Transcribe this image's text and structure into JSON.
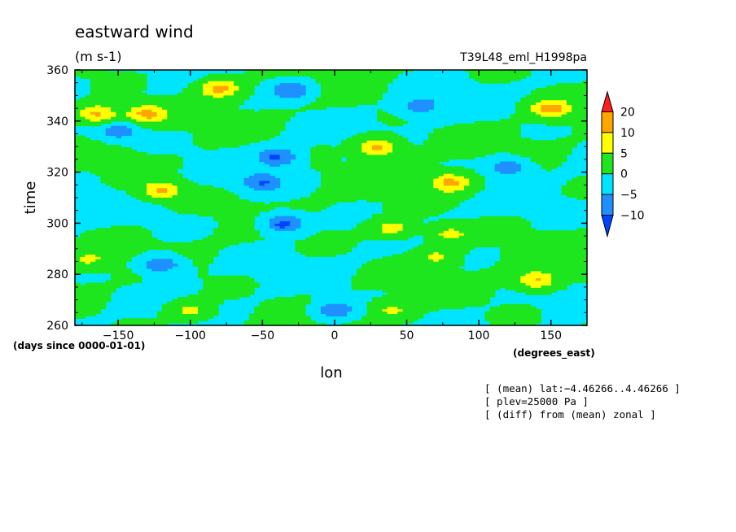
{
  "chart_data": {
    "type": "heatmap",
    "title": "eastward wind",
    "units": "(m s-1)",
    "run_label": "T39L48_eml_H1998pa",
    "xlabel": "lon",
    "x_units": "(degrees_east)",
    "ylabel": "time",
    "y_units": "(days since 0000-01-01)",
    "xlim": [
      -180,
      175
    ],
    "ylim": [
      260,
      360
    ],
    "x_ticks": [
      -150,
      -100,
      -50,
      0,
      50,
      100,
      150
    ],
    "x_tick_labels": [
      "−150",
      "−100",
      "−50",
      "0",
      "50",
      "100",
      "150"
    ],
    "y_ticks": [
      260,
      280,
      300,
      320,
      340,
      360
    ],
    "y_tick_labels": [
      "260",
      "280",
      "300",
      "320",
      "340",
      "360"
    ],
    "colorbar": {
      "levels": [
        -10,
        -5,
        0,
        5,
        10,
        20
      ],
      "level_labels": [
        "−10",
        "−5",
        "0",
        "5",
        "10",
        "20"
      ],
      "bins": [
        {
          "range": "< -10",
          "color": "#0044ff"
        },
        {
          "range": "-10 to -5",
          "color": "#1e90ff"
        },
        {
          "range": "-5 to 0",
          "color": "#00e5ff"
        },
        {
          "range": "0 to 5",
          "color": "#1ee61e"
        },
        {
          "range": "5 to 10",
          "color": "#ffff00"
        },
        {
          "range": "10 to 20",
          "color": "#ffa500"
        },
        {
          "range": "> 20",
          "color": "#ff1e1e"
        }
      ]
    },
    "notes": [
      "[ (mean) lat:−4.46266..4.46266 ]",
      "[ plev=25000 Pa ]",
      "[ (diff) from (mean) zonal ]"
    ],
    "features": [
      {
        "lon": -80,
        "time": 353,
        "value": 12
      },
      {
        "lon": -165,
        "time": 343,
        "value": 12
      },
      {
        "lon": -130,
        "time": 343,
        "value": 12
      },
      {
        "lon": 150,
        "time": 345,
        "value": 12
      },
      {
        "lon": 30,
        "time": 330,
        "value": 12
      },
      {
        "lon": 80,
        "time": 316,
        "value": 12
      },
      {
        "lon": -120,
        "time": 313,
        "value": 11
      },
      {
        "lon": 40,
        "time": 298,
        "value": 8
      },
      {
        "lon": 80,
        "time": 296,
        "value": 7
      },
      {
        "lon": 70,
        "time": 287,
        "value": 6
      },
      {
        "lon": 140,
        "time": 278,
        "value": 11
      },
      {
        "lon": 40,
        "time": 266,
        "value": 6
      },
      {
        "lon": -100,
        "time": 266,
        "value": 7
      },
      {
        "lon": -170,
        "time": 286,
        "value": 6
      },
      {
        "lon": -35,
        "time": 300,
        "value": -13
      },
      {
        "lon": -40,
        "time": 326,
        "value": -11
      },
      {
        "lon": -50,
        "time": 316,
        "value": -10
      },
      {
        "lon": -30,
        "time": 352,
        "value": -10
      },
      {
        "lon": -120,
        "time": 284,
        "value": -10
      },
      {
        "lon": 0,
        "time": 266,
        "value": -9
      },
      {
        "lon": 120,
        "time": 322,
        "value": -9
      },
      {
        "lon": -150,
        "time": 336,
        "value": -8
      },
      {
        "lon": 60,
        "time": 346,
        "value": -8
      }
    ]
  }
}
